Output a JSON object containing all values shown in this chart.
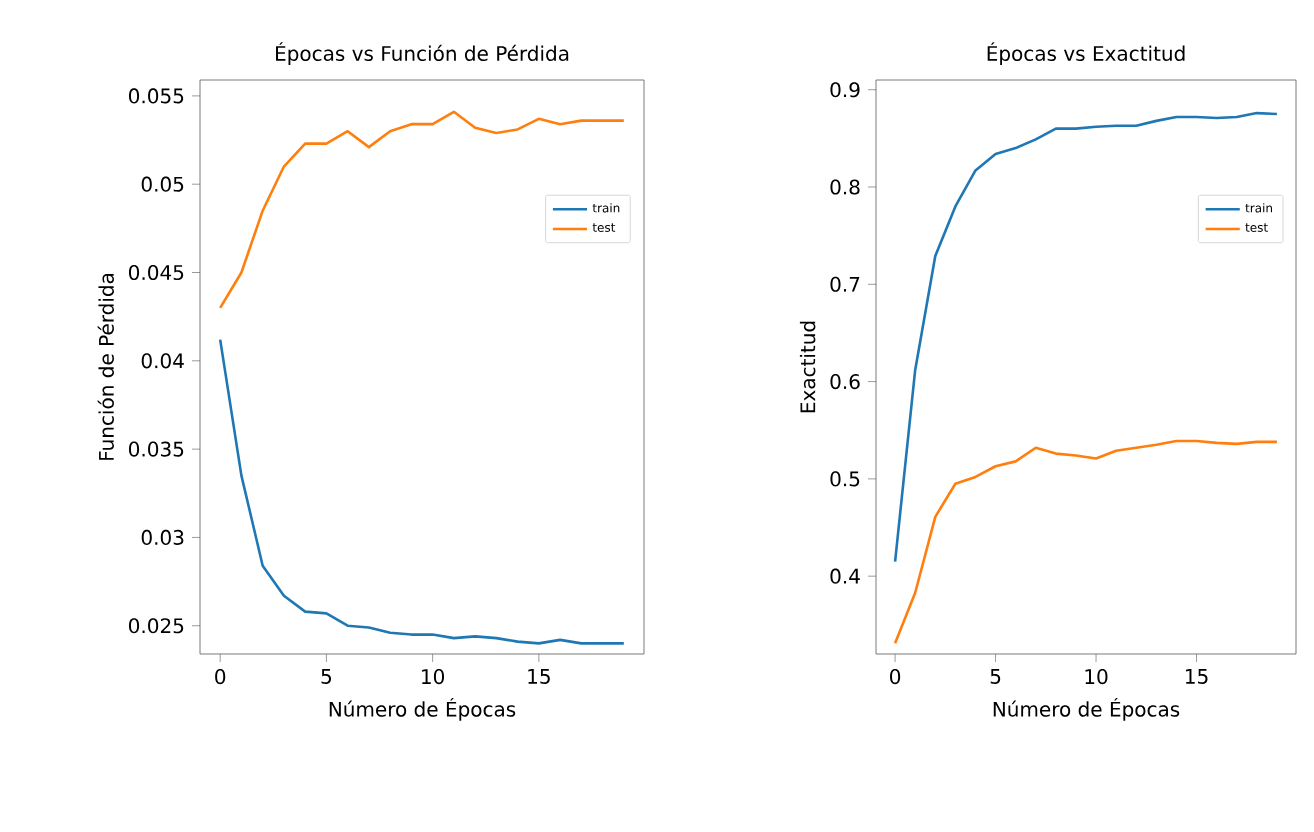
{
  "chart_data": [
    {
      "type": "line",
      "title": "Épocas vs Función de Pérdida",
      "xlabel": "Número de Épocas",
      "ylabel": "Función de Pérdida",
      "x": [
        0,
        1,
        2,
        3,
        4,
        5,
        6,
        7,
        8,
        9,
        10,
        11,
        12,
        13,
        14,
        15,
        16,
        17,
        18,
        19
      ],
      "xlim": [
        -0.95,
        19.95
      ],
      "ylim": [
        0.0234,
        0.0559
      ],
      "xticks": [
        0,
        5,
        10,
        15
      ],
      "yticks": [
        0.025,
        0.03,
        0.035,
        0.04,
        0.045,
        0.05,
        0.055
      ],
      "legend": "top right",
      "series": [
        {
          "name": "train",
          "color": "#1f77b4",
          "values": [
            0.0412,
            0.0335,
            0.0284,
            0.0267,
            0.0258,
            0.0257,
            0.025,
            0.0249,
            0.0246,
            0.0245,
            0.0245,
            0.0243,
            0.0244,
            0.0243,
            0.0241,
            0.024,
            0.0242,
            0.024,
            0.024,
            0.024
          ]
        },
        {
          "name": "test",
          "color": "#ff7f0e",
          "values": [
            0.043,
            0.045,
            0.0485,
            0.051,
            0.0523,
            0.0523,
            0.053,
            0.0521,
            0.053,
            0.0534,
            0.0534,
            0.0541,
            0.0532,
            0.0529,
            0.0531,
            0.0537,
            0.0534,
            0.0536,
            0.0536,
            0.0536
          ]
        }
      ]
    },
    {
      "type": "line",
      "title": "Épocas vs Exactitud",
      "xlabel": "Número de Épocas",
      "ylabel": "Exactitud",
      "x": [
        0,
        1,
        2,
        3,
        4,
        5,
        6,
        7,
        8,
        9,
        10,
        11,
        12,
        13,
        14,
        15,
        16,
        17,
        18,
        19
      ],
      "xlim": [
        -0.95,
        19.95
      ],
      "ylim": [
        0.32,
        0.91
      ],
      "xticks": [
        0,
        5,
        10,
        15
      ],
      "yticks": [
        0.4,
        0.5,
        0.6,
        0.7,
        0.8,
        0.9
      ],
      "legend": "top right",
      "series": [
        {
          "name": "train",
          "color": "#1f77b4",
          "values": [
            0.415,
            0.612,
            0.729,
            0.78,
            0.817,
            0.834,
            0.84,
            0.849,
            0.86,
            0.86,
            0.862,
            0.863,
            0.863,
            0.868,
            0.872,
            0.872,
            0.871,
            0.872,
            0.876,
            0.875
          ]
        },
        {
          "name": "test",
          "color": "#ff7f0e",
          "values": [
            0.331,
            0.383,
            0.461,
            0.495,
            0.502,
            0.513,
            0.518,
            0.532,
            0.526,
            0.524,
            0.521,
            0.529,
            0.532,
            0.535,
            0.539,
            0.539,
            0.537,
            0.536,
            0.538,
            0.538
          ]
        }
      ]
    }
  ]
}
